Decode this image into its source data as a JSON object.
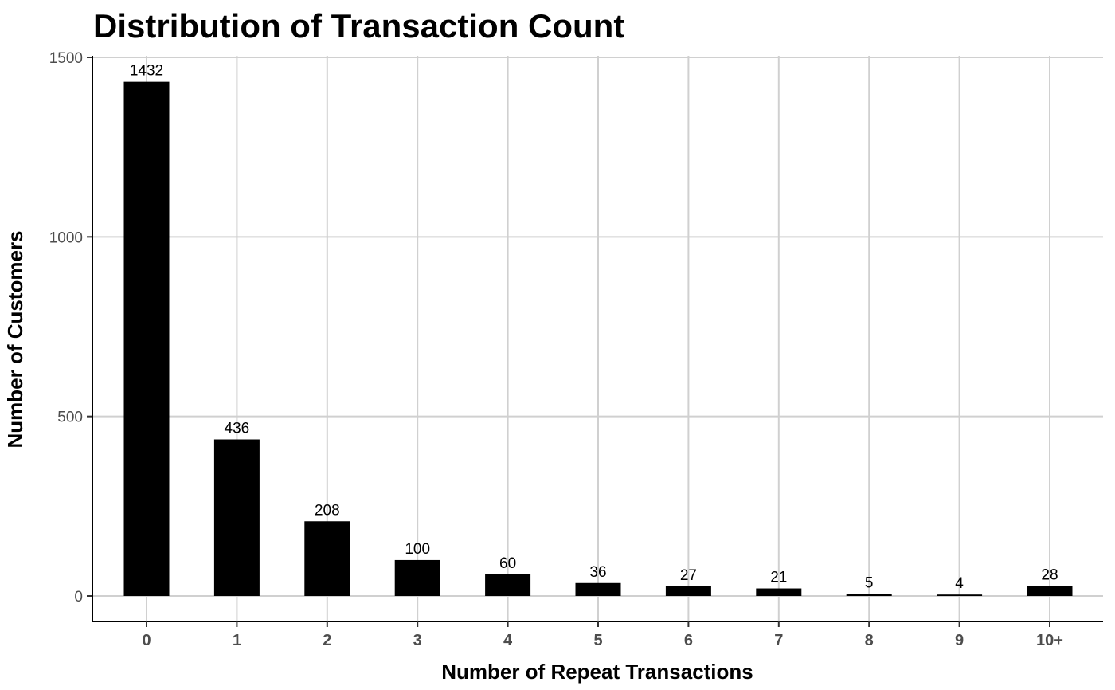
{
  "chart_data": {
    "type": "bar",
    "title": "Distribution of Transaction Count",
    "xlabel": "Number of Repeat Transactions",
    "ylabel": "Number of Customers",
    "categories": [
      "0",
      "1",
      "2",
      "3",
      "4",
      "5",
      "6",
      "7",
      "8",
      "9",
      "10+"
    ],
    "values": [
      1432,
      436,
      208,
      100,
      60,
      36,
      27,
      21,
      5,
      4,
      28
    ],
    "data_labels": [
      "1432",
      "436",
      "208",
      "100",
      "60",
      "36",
      "27",
      "21",
      "5",
      "4",
      "28"
    ],
    "yticks": [
      0,
      500,
      1000,
      1500
    ],
    "ytick_labels": [
      "0",
      "500",
      "1000",
      "1500"
    ],
    "ylim": [
      -72,
      1500
    ],
    "grid": true,
    "bar_color": "#000000",
    "grid_color": "#d0d0d0"
  }
}
